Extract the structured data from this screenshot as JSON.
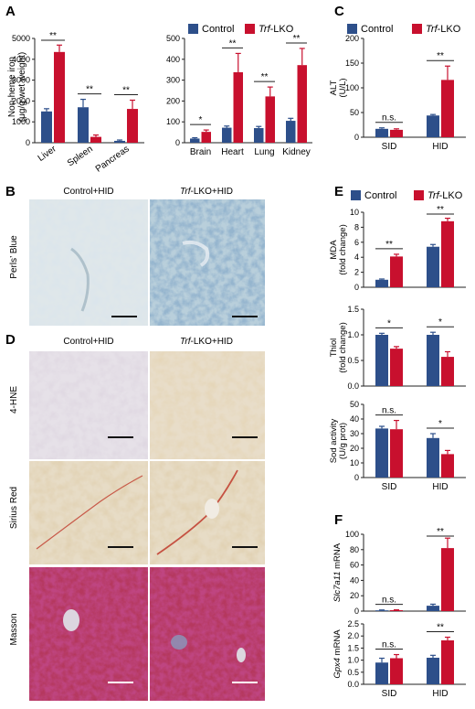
{
  "colors": {
    "control": "#2d4f8a",
    "trf": "#c8102e"
  },
  "legend": {
    "control": "Control",
    "trf_italic": "Trf",
    "trf_suffix": "-LKO"
  },
  "panels": {
    "A": {
      "letter": "A",
      "ylabel": "Non-heme iron",
      "ylabel2": "(μg/g wet weight)"
    },
    "B": {
      "letter": "B",
      "col1": "Control+HID",
      "col2_italic": "Trf",
      "col2_suffix": "-LKO+HID",
      "row": "Perls’ Blue"
    },
    "C": {
      "letter": "C",
      "ylabel": "ALT (U/L)"
    },
    "D": {
      "letter": "D",
      "col1": "Control+HID",
      "col2_italic": "Trf",
      "col2_suffix": "-LKO+HID",
      "rows": [
        "4-HNE",
        "Sirius Red",
        "Masson"
      ]
    },
    "E": {
      "letter": "E"
    },
    "F": {
      "letter": "F"
    }
  },
  "chart_data": [
    {
      "id": "A1",
      "type": "bar",
      "categories": [
        "Liver",
        "Spleen",
        "Pancreas"
      ],
      "series": [
        {
          "name": "Control",
          "values": [
            1500,
            1700,
            90
          ],
          "errors": [
            130,
            380,
            40
          ]
        },
        {
          "name": "Trf-LKO",
          "values": [
            4350,
            280,
            1620
          ],
          "errors": [
            330,
            90,
            420
          ]
        }
      ],
      "ylim": [
        0,
        5000
      ],
      "yticks": [
        0,
        1000,
        2000,
        3000,
        4000,
        5000
      ],
      "ylabel": "Non-heme iron (μg/g wet weight)",
      "significance": [
        "**",
        "**",
        "**"
      ]
    },
    {
      "id": "A2",
      "type": "bar",
      "categories": [
        "Brain",
        "Heart",
        "Lung",
        "Kidney"
      ],
      "series": [
        {
          "name": "Control",
          "values": [
            20,
            72,
            70,
            105
          ],
          "errors": [
            4,
            8,
            8,
            12
          ]
        },
        {
          "name": "Trf-LKO",
          "values": [
            52,
            338,
            222,
            372
          ],
          "errors": [
            9,
            90,
            45,
            80
          ]
        }
      ],
      "ylim": [
        0,
        500
      ],
      "yticks": [
        0,
        100,
        200,
        300,
        400,
        500
      ],
      "significance": [
        "*",
        "**",
        "**",
        "**"
      ]
    },
    {
      "id": "C",
      "type": "bar",
      "categories": [
        "SID",
        "HID"
      ],
      "series": [
        {
          "name": "Control",
          "values": [
            17,
            44
          ],
          "errors": [
            2,
            2
          ]
        },
        {
          "name": "Trf-LKO",
          "values": [
            15,
            116
          ],
          "errors": [
            2,
            28
          ]
        }
      ],
      "ylim": [
        0,
        200
      ],
      "yticks": [
        0,
        50,
        100,
        150,
        200
      ],
      "ylabel": "ALT (U/L)",
      "significance": [
        "n.s.",
        "**"
      ]
    },
    {
      "id": "E-MDA",
      "type": "bar",
      "categories": [
        "SID",
        "HID"
      ],
      "series": [
        {
          "name": "Control",
          "values": [
            1.0,
            5.4
          ],
          "errors": [
            0.1,
            0.3
          ]
        },
        {
          "name": "Trf-LKO",
          "values": [
            4.1,
            8.8
          ],
          "errors": [
            0.3,
            0.4
          ]
        }
      ],
      "ylim": [
        0,
        10
      ],
      "yticks": [
        0,
        2,
        4,
        6,
        8,
        10
      ],
      "ylabel": "MDA (fold change)",
      "significance": [
        "**",
        "**"
      ]
    },
    {
      "id": "E-Thiol",
      "type": "bar",
      "categories": [
        "SID",
        "HID"
      ],
      "series": [
        {
          "name": "Control",
          "values": [
            1.0,
            1.0
          ],
          "errors": [
            0.03,
            0.05
          ]
        },
        {
          "name": "Trf-LKO",
          "values": [
            0.73,
            0.57
          ],
          "errors": [
            0.04,
            0.1
          ]
        }
      ],
      "ylim": [
        0,
        1.5
      ],
      "yticks": [
        0.0,
        0.5,
        1.0,
        1.5
      ],
      "ylabel": "Thiol (fold change)",
      "significance": [
        "*",
        "*"
      ]
    },
    {
      "id": "E-Sod",
      "type": "bar",
      "categories": [
        "SID",
        "HID"
      ],
      "series": [
        {
          "name": "Control",
          "values": [
            33.5,
            27
          ],
          "errors": [
            1.5,
            3
          ]
        },
        {
          "name": "Trf-LKO",
          "values": [
            33,
            16
          ],
          "errors": [
            6,
            2.5
          ]
        }
      ],
      "ylim": [
        0,
        50
      ],
      "yticks": [
        0,
        10,
        20,
        30,
        40,
        50
      ],
      "ylabel": "Sod activity (U/g prot)",
      "significance": [
        "n.s.",
        "*"
      ]
    },
    {
      "id": "F-Slc7a11",
      "type": "bar",
      "categories": [
        "SID",
        "HID"
      ],
      "series": [
        {
          "name": "Control",
          "values": [
            1,
            7
          ],
          "errors": [
            0.5,
            2
          ]
        },
        {
          "name": "Trf-LKO",
          "values": [
            1.2,
            82
          ],
          "errors": [
            0.5,
            13
          ]
        }
      ],
      "ylim": [
        0,
        100
      ],
      "yticks": [
        0,
        20,
        40,
        60,
        80,
        100
      ],
      "ylabel": "Slc7a11 mRNA",
      "significance": [
        "n.s.",
        "**"
      ]
    },
    {
      "id": "F-Gpx4",
      "type": "bar",
      "categories": [
        "SID",
        "HID"
      ],
      "series": [
        {
          "name": "Control",
          "values": [
            0.9,
            1.1
          ],
          "errors": [
            0.18,
            0.1
          ]
        },
        {
          "name": "Trf-LKO",
          "values": [
            1.08,
            1.82
          ],
          "errors": [
            0.15,
            0.13
          ]
        }
      ],
      "ylim": [
        0,
        2.5
      ],
      "yticks": [
        0.0,
        0.5,
        1.0,
        1.5,
        2.0,
        2.5
      ],
      "ylabel": "Gpx4 mRNA",
      "significance": [
        "n.s.",
        "**"
      ]
    }
  ]
}
